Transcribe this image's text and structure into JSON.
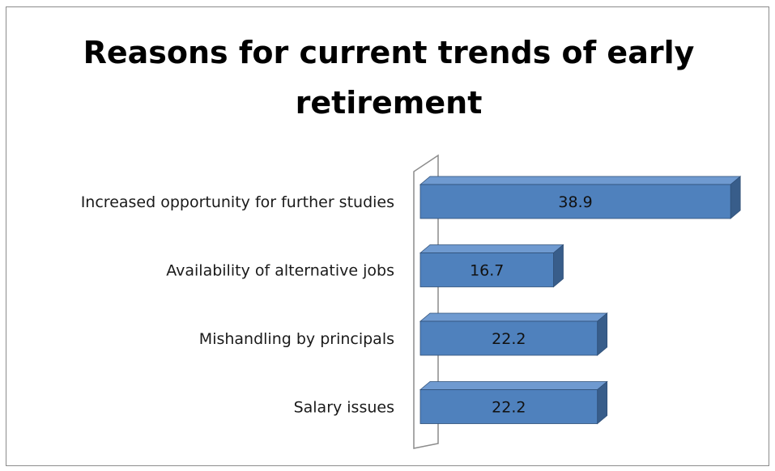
{
  "chart_data": {
    "type": "bar",
    "orientation": "horizontal",
    "style": "3d-clustered-bar",
    "title": "Reasons for current trends of early retirement",
    "categories": [
      "Increased opportunity for further studies",
      "Availability of alternative jobs",
      "Mishandling by principals",
      "Salary issues"
    ],
    "values": [
      38.9,
      16.7,
      22.2,
      22.2
    ],
    "data_labels": [
      "38.9",
      "16.7",
      "22.2",
      "22.2"
    ],
    "xlim": [
      0,
      40
    ],
    "grid": false,
    "legend": "none",
    "colors": {
      "bar_front": "#4f81bd",
      "bar_top": "#6f9ad0",
      "bar_side": "#385d8a",
      "bar_edge": "#2f4f77",
      "wall_stroke": "#8c8c8c"
    }
  }
}
